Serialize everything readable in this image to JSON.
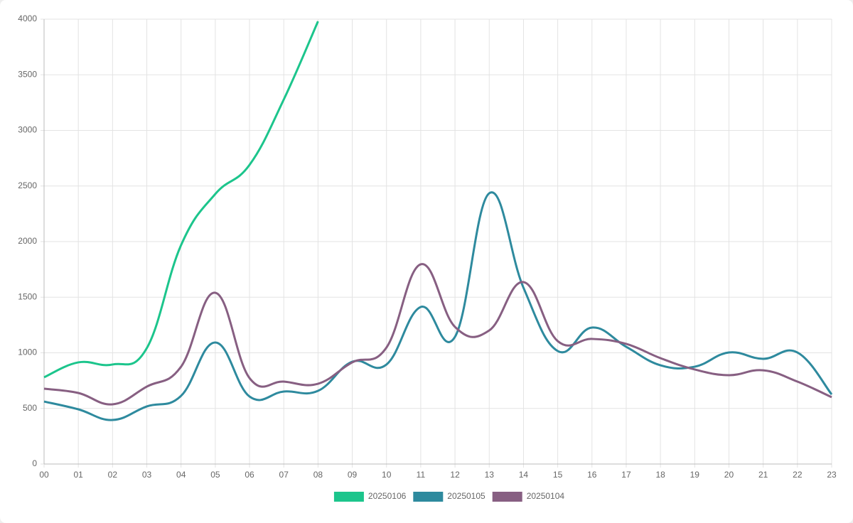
{
  "chart_data": {
    "type": "line",
    "categories": [
      "00",
      "01",
      "02",
      "03",
      "04",
      "05",
      "06",
      "07",
      "08",
      "09",
      "10",
      "11",
      "12",
      "13",
      "14",
      "15",
      "16",
      "17",
      "18",
      "19",
      "20",
      "21",
      "22",
      "23"
    ],
    "series": [
      {
        "name": "20250106",
        "color": "#1cc58c",
        "values": [
          780,
          914,
          895,
          1042,
          1968,
          2428,
          2690,
          3278,
          3981,
          null,
          null,
          null,
          null,
          null,
          null,
          null,
          null,
          null,
          null,
          null,
          null,
          null,
          null,
          null
        ]
      },
      {
        "name": "20250105",
        "color": "#2e8a9e",
        "values": [
          562,
          492,
          396,
          518,
          613,
          1093,
          607,
          652,
          658,
          920,
          895,
          1412,
          1144,
          2435,
          1585,
          1016,
          1227,
          1054,
          888,
          875,
          1003,
          946,
          1003,
          626
        ]
      },
      {
        "name": "20250104",
        "color": "#875f82",
        "values": [
          677,
          639,
          537,
          696,
          875,
          1540,
          773,
          741,
          722,
          914,
          1048,
          1796,
          1233,
          1201,
          1636,
          1105,
          1125,
          1080,
          952,
          850,
          799,
          843,
          741,
          601
        ]
      }
    ],
    "ylim": [
      0,
      4000
    ],
    "yticks": [
      0,
      500,
      1000,
      1500,
      2000,
      2500,
      3000,
      3500,
      4000
    ],
    "grid": true,
    "legend": "bottom"
  }
}
